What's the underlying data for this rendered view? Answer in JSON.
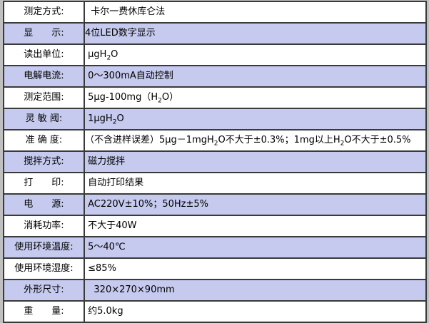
{
  "colors": {
    "page_bg": "#c0c0c0",
    "border": "#3a3a3a",
    "shaded_row": "#c5caee",
    "plain_row": "#ffffff",
    "text": "#000000"
  },
  "table": {
    "rows": [
      {
        "label": "测定方式:",
        "value": "  卡尔一费休库仑法",
        "shaded": false
      },
      {
        "label": "显　　示:",
        "value": "4位LED数字显示",
        "shaded": true
      },
      {
        "label": "读出单位:",
        "value": " μgH₂O",
        "shaded": false
      },
      {
        "label": "电解电流:",
        "value": " 0～300mA自动控制",
        "shaded": true
      },
      {
        "label": "测定范围:",
        "value": " 5μg-100mg（H₂O）",
        "shaded": false
      },
      {
        "label": "灵 敏 阈:",
        "value": " 1μgH₂O",
        "shaded": true
      },
      {
        "label": "准 确 度:",
        "value": "（不含进样误差）5μg－1mgH₂O不大于±0.3%；1mg以上H₂O不大于±0.5%",
        "shaded": false
      },
      {
        "label": "搅拌方式:",
        "value": " 磁力搅拌",
        "shaded": true
      },
      {
        "label": "打　　印:",
        "value": " 自动打印结果",
        "shaded": false
      },
      {
        "label": "电　　源:",
        "value": " AC220V±10%；50Hz±5%",
        "shaded": true
      },
      {
        "label": "消耗功率:",
        "value": " 不大于40W",
        "shaded": false
      },
      {
        "label": "使用环境温度:",
        "value": " 5～40℃",
        "shaded": true
      },
      {
        "label": "使用环境湿度:",
        "value": " ≤85%",
        "shaded": false
      },
      {
        "label": "外形尺寸:",
        "value": "   320×270×90mm",
        "shaded": true
      },
      {
        "label": "重　　量:",
        "value": " 约5.0kg",
        "shaded": false
      }
    ]
  }
}
